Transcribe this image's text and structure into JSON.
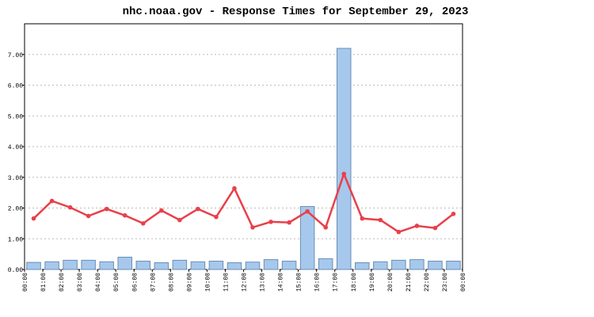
{
  "chart_data": {
    "type": "bar-line",
    "title": "nhc.noaa.gov - Response Times for September 29, 2023",
    "xlim": [
      0,
      24
    ],
    "xticks": [
      {
        "value": 0,
        "label": "00:00"
      },
      {
        "value": 1,
        "label": "01:00"
      },
      {
        "value": 2,
        "label": "02:00"
      },
      {
        "value": 3,
        "label": "03:00"
      },
      {
        "value": 4,
        "label": "04:00"
      },
      {
        "value": 5,
        "label": "05:00"
      },
      {
        "value": 6,
        "label": "06:00"
      },
      {
        "value": 7,
        "label": "07:00"
      },
      {
        "value": 8,
        "label": "08:00"
      },
      {
        "value": 9,
        "label": "09:00"
      },
      {
        "value": 10,
        "label": "10:00"
      },
      {
        "value": 11,
        "label": "11:00"
      },
      {
        "value": 12,
        "label": "12:00"
      },
      {
        "value": 13,
        "label": "13:00"
      },
      {
        "value": 14,
        "label": "14:00"
      },
      {
        "value": 15,
        "label": "15:00"
      },
      {
        "value": 16,
        "label": "16:00"
      },
      {
        "value": 17,
        "label": "17:00"
      },
      {
        "value": 18,
        "label": "18:00"
      },
      {
        "value": 19,
        "label": "19:00"
      },
      {
        "value": 20,
        "label": "20:00"
      },
      {
        "value": 21,
        "label": "21:00"
      },
      {
        "value": 22,
        "label": "22:00"
      },
      {
        "value": 23,
        "label": "23:00"
      },
      {
        "value": 24,
        "label": "00:00"
      }
    ],
    "ylim": [
      0,
      8
    ],
    "yticks": [
      {
        "value": 0,
        "label": "0.00"
      },
      {
        "value": 1,
        "label": "1.00"
      },
      {
        "value": 2,
        "label": "2.00"
      },
      {
        "value": 3,
        "label": "3.00"
      },
      {
        "value": 4,
        "label": "4.00"
      },
      {
        "value": 5,
        "label": "5.00"
      },
      {
        "value": 6,
        "label": "6.00"
      },
      {
        "value": 7,
        "label": "7.00"
      }
    ],
    "grid": true,
    "series": [
      {
        "type": "bar",
        "color": "#a6c8ec",
        "edge_color": "#6a8fb5",
        "values": [
          0.23,
          0.25,
          0.3,
          0.3,
          0.25,
          0.4,
          0.27,
          0.22,
          0.3,
          0.25,
          0.27,
          0.22,
          0.24,
          0.32,
          0.27,
          2.05,
          0.35,
          7.2,
          0.22,
          0.25,
          0.3,
          0.32,
          0.27,
          0.27
        ]
      },
      {
        "type": "line",
        "color": "#e8404a",
        "values": [
          1.66,
          2.23,
          2.02,
          1.74,
          1.97,
          1.76,
          1.5,
          1.92,
          1.61,
          1.97,
          1.71,
          2.64,
          1.37,
          1.55,
          1.53,
          1.89,
          1.37,
          3.11,
          1.66,
          1.61,
          1.22,
          1.42,
          1.35,
          1.81
        ]
      }
    ]
  }
}
